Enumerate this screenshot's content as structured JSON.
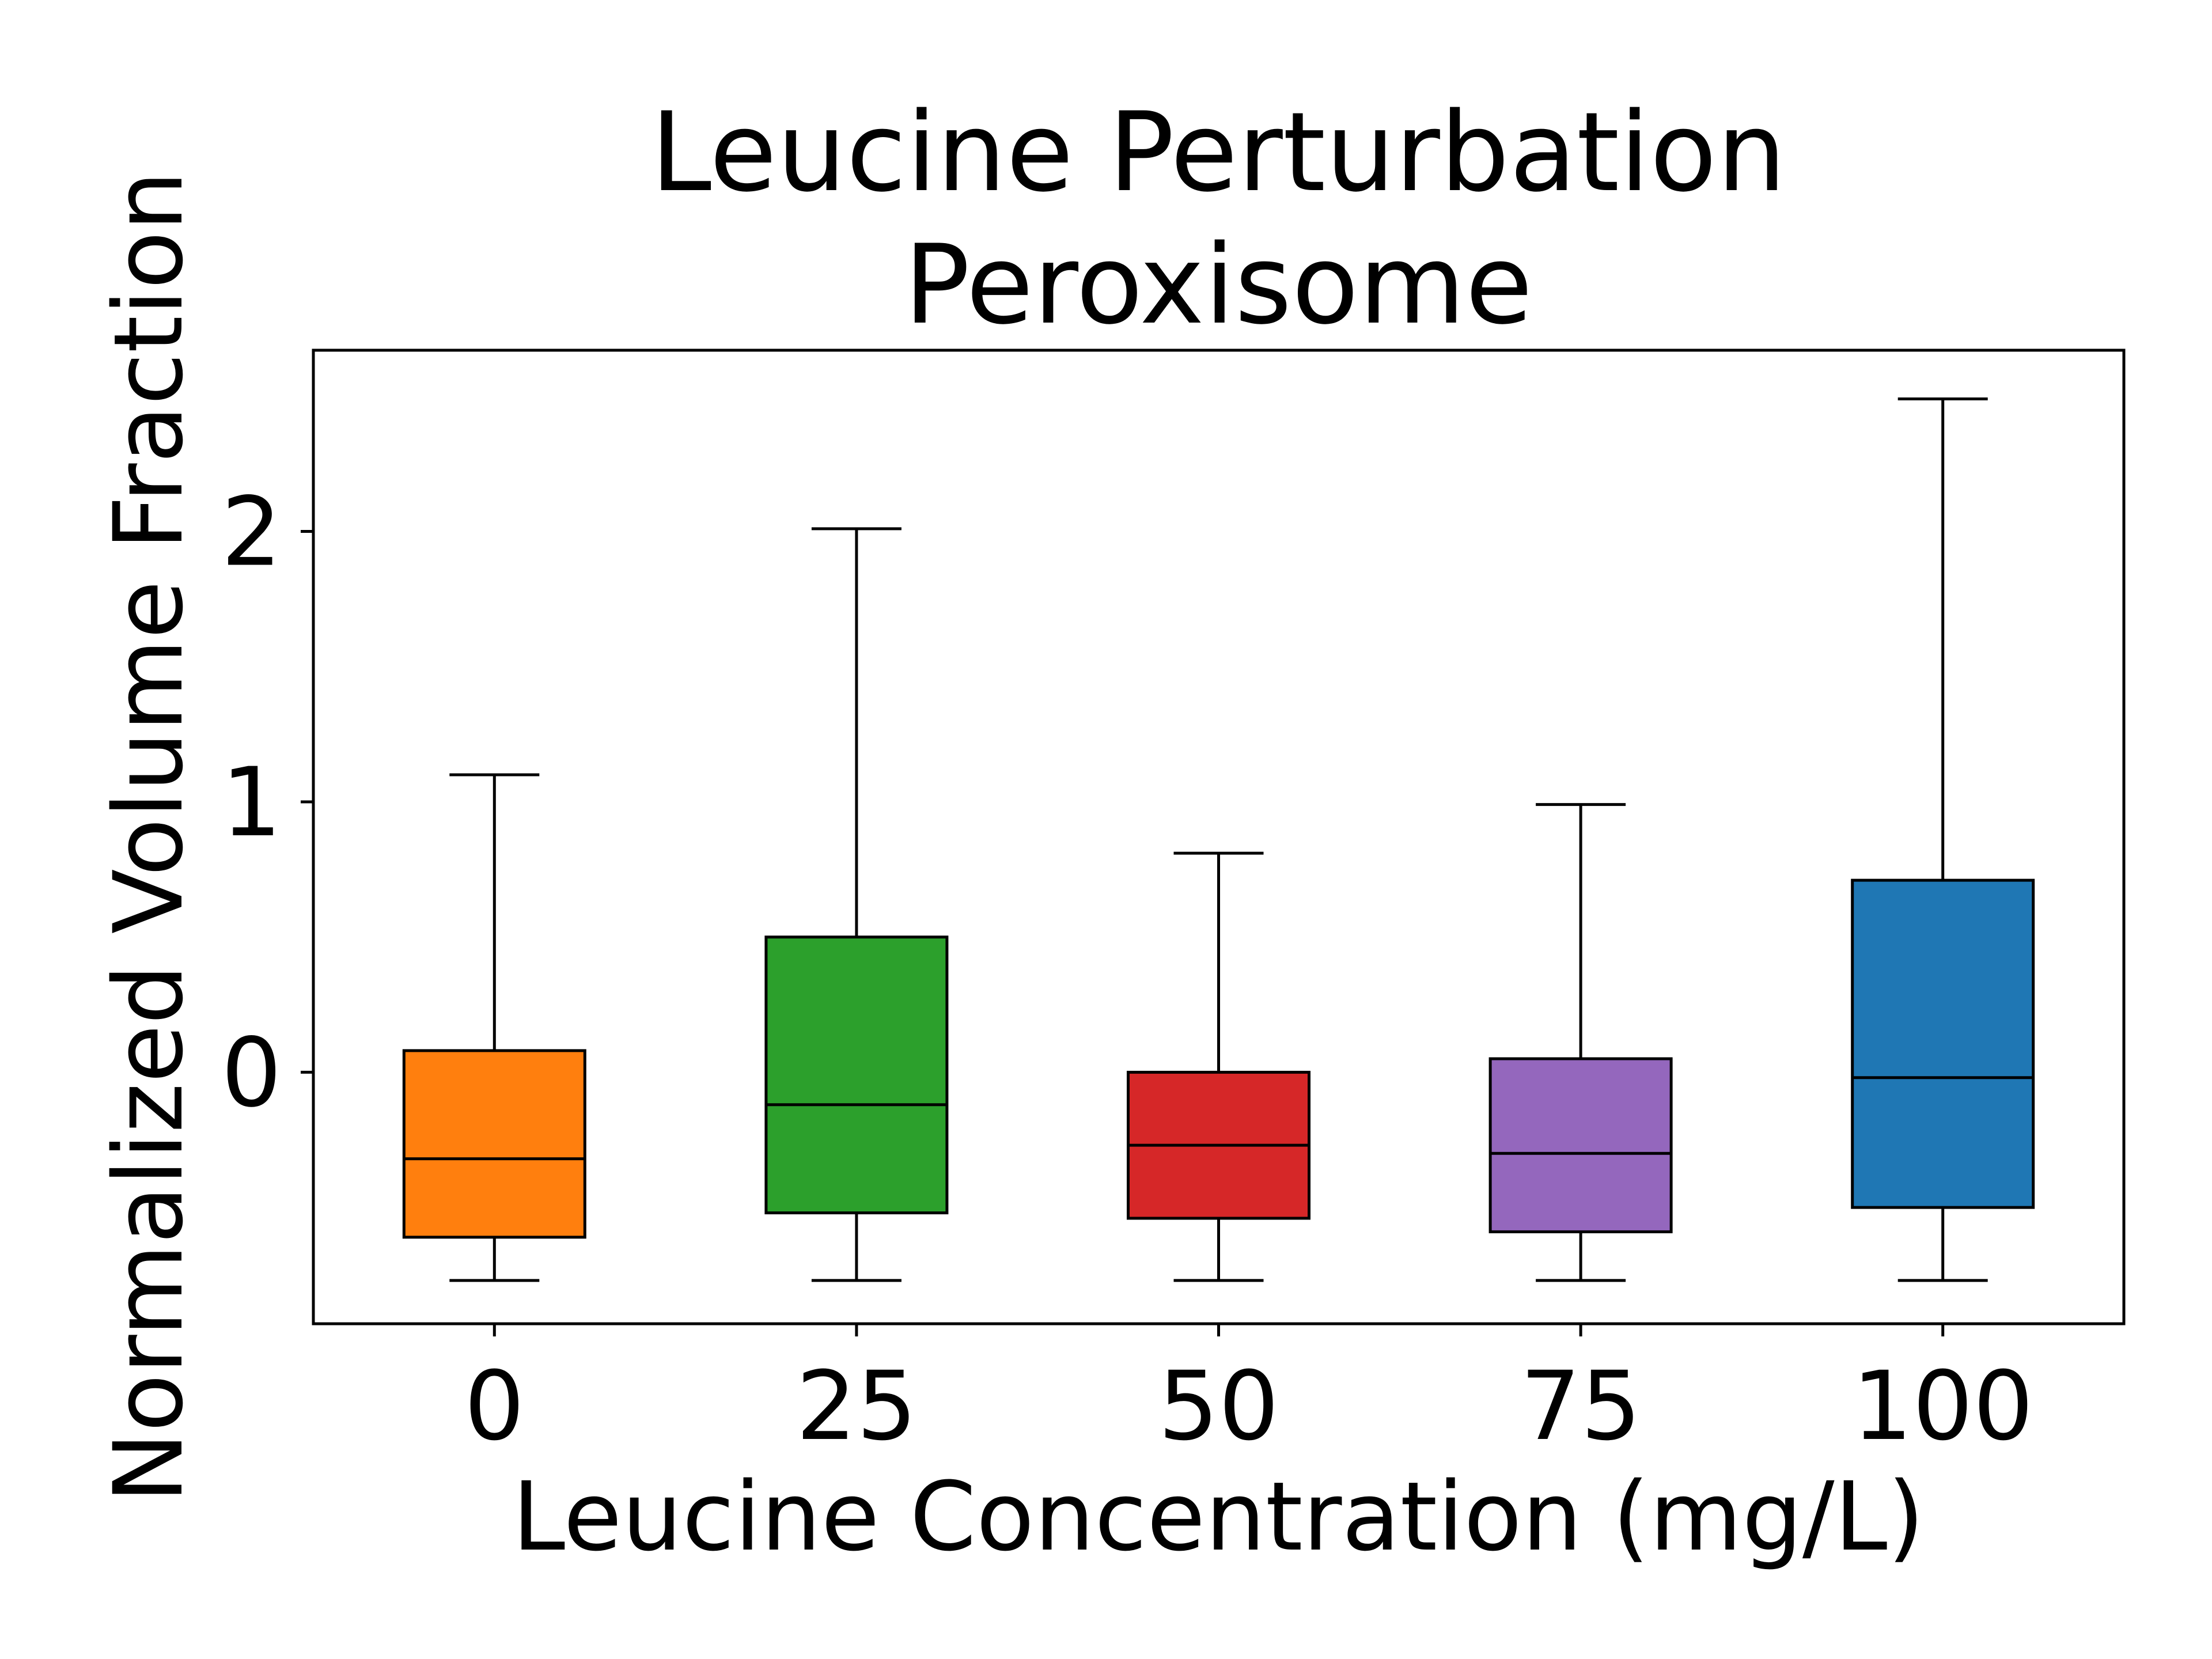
{
  "chart_data": {
    "type": "box",
    "title": [
      "Leucine Perturbation",
      "Peroxisome"
    ],
    "xlabel": "Leucine Concentration (mg/L)",
    "ylabel": "Normalized Volume Fraction",
    "categories": [
      "0",
      "25",
      "50",
      "75",
      "100"
    ],
    "yticks": [
      0,
      1,
      2
    ],
    "ylim": [
      -0.93,
      2.67
    ],
    "grid": false,
    "legend": "none",
    "boxes": [
      {
        "category": "0",
        "whisker_low": -0.77,
        "q1": -0.61,
        "median": -0.32,
        "q3": 0.08,
        "whisker_high": 1.1,
        "color": "#ff7f0e"
      },
      {
        "category": "25",
        "whisker_low": -0.77,
        "q1": -0.52,
        "median": -0.12,
        "q3": 0.5,
        "whisker_high": 2.01,
        "color": "#2ca02c"
      },
      {
        "category": "50",
        "whisker_low": -0.77,
        "q1": -0.54,
        "median": -0.27,
        "q3": 0.0,
        "whisker_high": 0.81,
        "color": "#d62728"
      },
      {
        "category": "75",
        "whisker_low": -0.77,
        "q1": -0.59,
        "median": -0.3,
        "q3": 0.05,
        "whisker_high": 0.99,
        "color": "#9467bd"
      },
      {
        "category": "100",
        "whisker_low": -0.77,
        "q1": -0.5,
        "median": -0.02,
        "q3": 0.71,
        "whisker_high": 2.49,
        "color": "#1f77b4"
      }
    ]
  }
}
